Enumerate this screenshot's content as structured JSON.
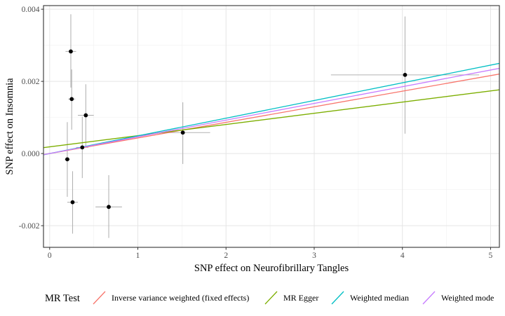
{
  "chart_data": {
    "type": "scatter",
    "title": "",
    "xlabel": "SNP effect on Neurofibrillary Tangles",
    "ylabel": "SNP effect on Insomnia",
    "xlim": [
      -0.07,
      5.1
    ],
    "ylim": [
      -0.0026,
      0.0041
    ],
    "grid": true,
    "x_ticks": [
      0,
      1,
      2,
      3,
      4,
      5
    ],
    "x_tick_labels": [
      "0",
      "1",
      "2",
      "3",
      "4",
      "5"
    ],
    "y_ticks": [
      -0.002,
      0.0,
      0.002,
      0.004
    ],
    "y_tick_labels": [
      "-0.002",
      "0.000",
      "0.002",
      "0.004"
    ],
    "points": [
      {
        "x": 0.24,
        "y": 0.00283,
        "x_lo": 0.18,
        "x_hi": 0.3,
        "y_lo": 0.00183,
        "y_hi": 0.00386
      },
      {
        "x": 0.25,
        "y": 0.00151,
        "x_lo": 0.21,
        "x_hi": 0.29,
        "y_lo": 0.00066,
        "y_hi": 0.00233
      },
      {
        "x": 0.41,
        "y": 0.00106,
        "x_lo": 0.32,
        "x_hi": 0.5,
        "y_lo": 0.00017,
        "y_hi": 0.00192
      },
      {
        "x": 0.37,
        "y": 0.00017,
        "x_lo": 0.3,
        "x_hi": 0.44,
        "y_lo": -0.00068,
        "y_hi": 0.00102
      },
      {
        "x": 0.2,
        "y": -0.00016,
        "x_lo": 0.17,
        "x_hi": 0.23,
        "y_lo": -0.0012,
        "y_hi": 0.00087
      },
      {
        "x": 0.26,
        "y": -0.00135,
        "x_lo": 0.2,
        "x_hi": 0.32,
        "y_lo": -0.00222,
        "y_hi": -0.00049
      },
      {
        "x": 0.67,
        "y": -0.00148,
        "x_lo": 0.52,
        "x_hi": 0.82,
        "y_lo": -0.00234,
        "y_hi": -0.0006
      },
      {
        "x": 1.51,
        "y": 0.00058,
        "x_lo": 1.22,
        "x_hi": 1.82,
        "y_lo": -0.00029,
        "y_hi": 0.00142
      },
      {
        "x": 4.03,
        "y": 0.00218,
        "x_lo": 3.19,
        "x_hi": 4.87,
        "y_lo": 0.00055,
        "y_hi": 0.0038
      }
    ],
    "series": [
      {
        "name": "Inverse variance weighted (fixed effects)",
        "color": "#F8766D",
        "slope": 0.000432,
        "intercept": 0.0
      },
      {
        "name": "MR Egger",
        "color": "#7CAE00",
        "slope": 0.00031,
        "intercept": 0.000185
      },
      {
        "name": "Weighted median",
        "color": "#00BFC4",
        "slope": 0.00049,
        "intercept": 0.0
      },
      {
        "name": "Weighted mode",
        "color": "#C77CFF",
        "slope": 0.000463,
        "intercept": 0.0
      }
    ],
    "legend": {
      "title": "MR Test",
      "placement": "bottom"
    }
  }
}
